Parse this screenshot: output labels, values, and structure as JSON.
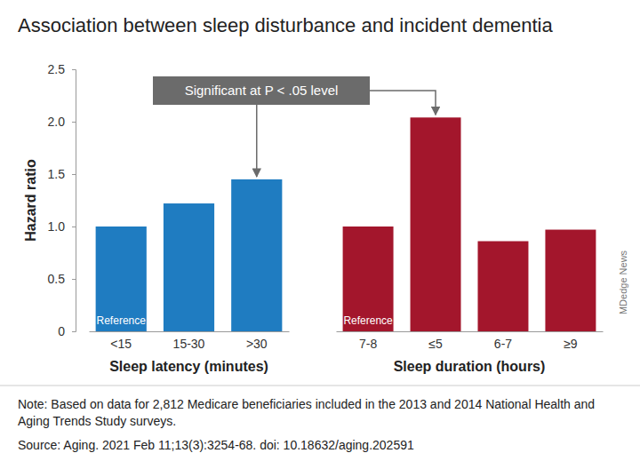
{
  "chart_data": {
    "type": "bar",
    "title": "Association between sleep disturbance and incident dementia",
    "ylabel": "Hazard ratio",
    "ylim": [
      0,
      2.5
    ],
    "yticks": [
      0,
      0.5,
      {
        "value": 1,
        "label": "1.0"
      },
      1.5,
      {
        "value": 2,
        "label": "2.0"
      },
      2.5
    ],
    "groups": [
      {
        "xlabel": "Sleep latency (minutes)",
        "categories": [
          "<15",
          "15-30",
          ">30"
        ],
        "values": [
          1.0,
          1.22,
          1.45
        ],
        "color": "#1f7cc1",
        "annotations": [
          {
            "text": "Reference",
            "category": "<15"
          }
        ]
      },
      {
        "xlabel": "Sleep duration (hours)",
        "categories": [
          "7-8",
          "≤5",
          "6-7",
          "≥9"
        ],
        "values": [
          1.0,
          2.04,
          0.86,
          0.97
        ],
        "color": "#a3162c",
        "annotations": [
          {
            "text": "Reference",
            "category": "7-8"
          }
        ]
      }
    ],
    "annotation": {
      "text": "Significant at P < .05 level",
      "targets": [
        ">30",
        "≤5"
      ]
    }
  },
  "note": "Note: Based on data for 2,812 Medicare beneficiaries included in the 2013 and 2014 National Health and Aging Trends Study surveys.",
  "source": "Source: Aging. 2021 Feb 11;13(3):3254-68. doi: 10.18632/aging.202591",
  "credit": "MDedge News"
}
